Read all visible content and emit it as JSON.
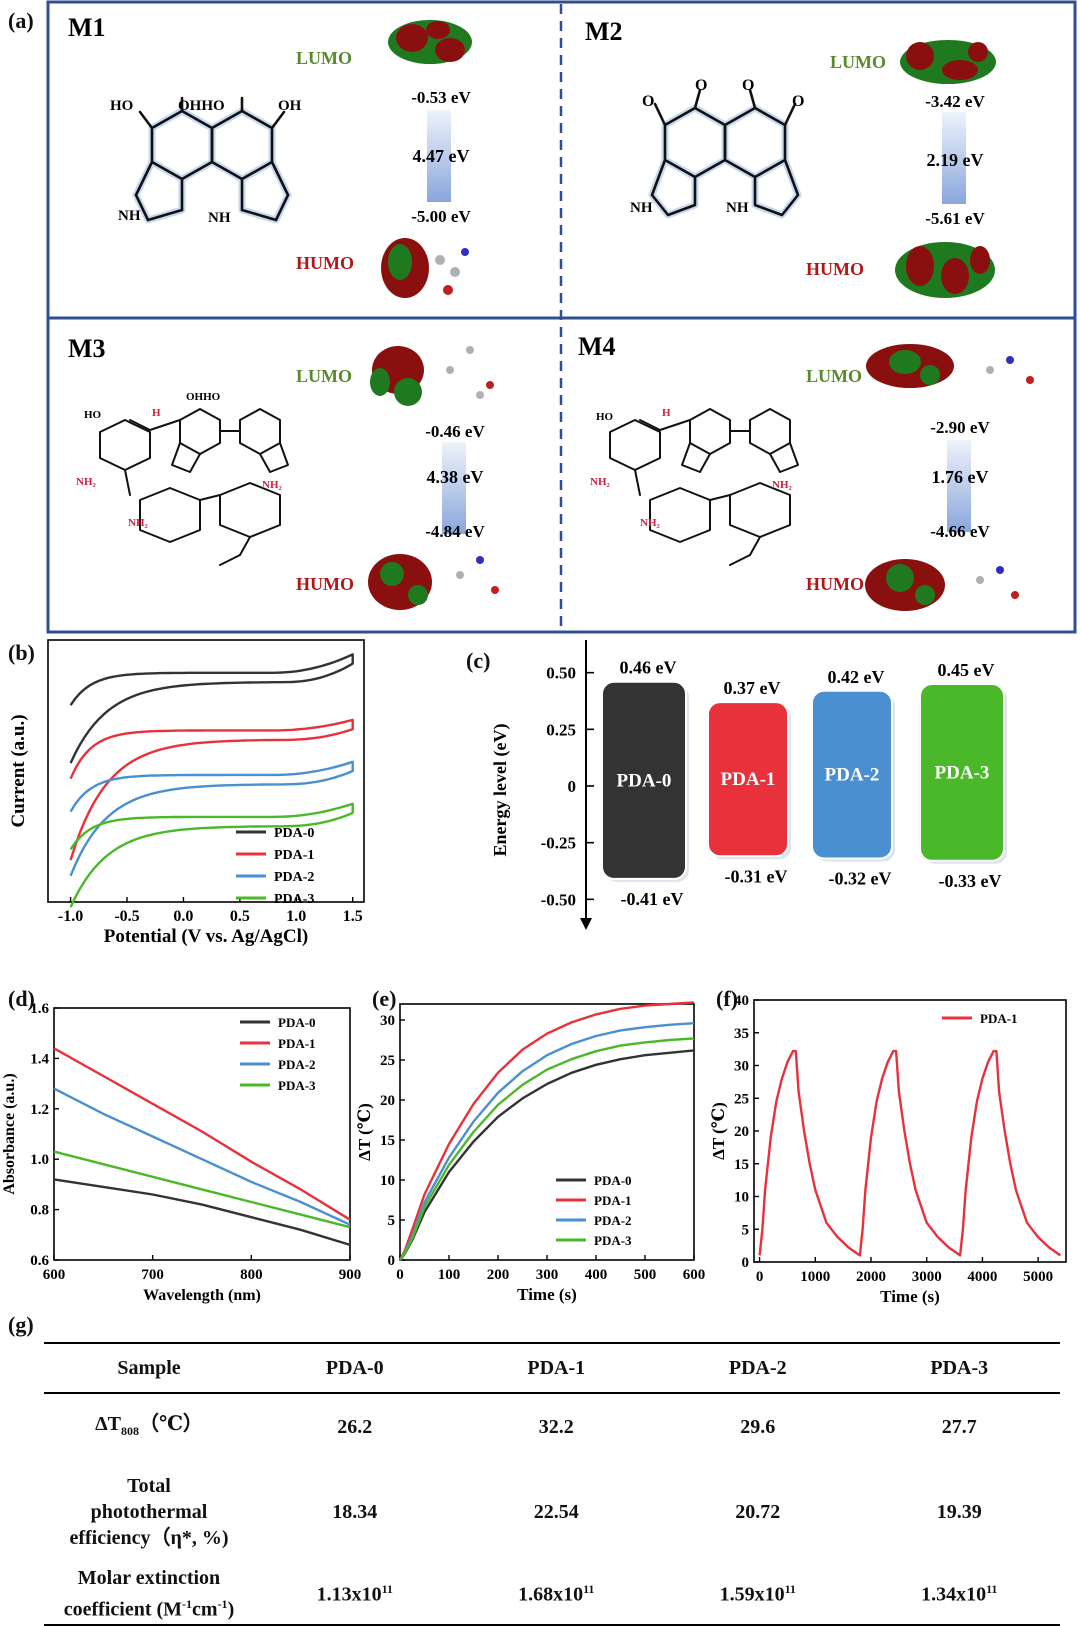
{
  "panel_labels": {
    "a": "(a)",
    "b": "(b)",
    "c": "(c)",
    "d": "(d)",
    "e": "(e)",
    "f": "(f)",
    "g": "(g)"
  },
  "colors": {
    "PDA-0": "#333333",
    "PDA-1": "#e8313b",
    "PDA-2": "#4a8fcf",
    "PDA-3": "#4bb82a",
    "frame": "#2f4f8f",
    "lumo": "#5a8a2a",
    "humo": "#b01818",
    "orbital_green": "#1f7a1f",
    "orbital_red": "#8a1010"
  },
  "molecules": [
    {
      "name": "M1",
      "lumo_label": "LUMO",
      "humo_label": "HUMO",
      "lumo": "-0.53 eV",
      "gap": "4.47 eV",
      "humo": "-5.00 eV"
    },
    {
      "name": "M2",
      "lumo_label": "LUMO",
      "humo_label": "HUMO",
      "lumo": "-3.42 eV",
      "gap": "2.19 eV",
      "humo": "-5.61 eV"
    },
    {
      "name": "M3",
      "lumo_label": "LUMO",
      "humo_label": "HUMO",
      "lumo": "-0.46 eV",
      "gap": "4.38 eV",
      "humo": "-4.84 eV"
    },
    {
      "name": "M4",
      "lumo_label": "LUMO",
      "humo_label": "HUMO",
      "lumo": "-2.90 eV",
      "gap": "1.76 eV",
      "humo": "-4.66 eV"
    }
  ],
  "structure_labels": {
    "OH": "OH",
    "HO": "HO",
    "OHHO": "OHHO",
    "OHHO2": "OHHO",
    "NH": "NH",
    "NH2": "NH₂",
    "H": "H",
    "O": "O"
  },
  "chart_data": [
    {
      "id": "b",
      "type": "line",
      "xlabel": "Potential (V vs. Ag/AgCl)",
      "ylabel": "Current (a.u.)",
      "xlim": [
        -1.2,
        1.6
      ],
      "xticks": [
        -1.0,
        -0.5,
        0.0,
        0.5,
        1.0,
        1.5
      ],
      "xtick_labels": [
        "-1.0",
        "-0.5",
        "0.0",
        "0.5",
        "1.0",
        "1.5"
      ],
      "legend": "bottom-right",
      "legend_labels": [
        "PDA-0",
        "PDA-1",
        "PDA-2",
        "PDA-3"
      ],
      "series": [
        {
          "name": "PDA-0",
          "upper_y": [
            0.8,
            0.83,
            0.85,
            0.86,
            0.86,
            0.86,
            0.87,
            0.89,
            0.93
          ],
          "lower_y": [
            0.8,
            0.83,
            0.85,
            0.86,
            0.86,
            0.86,
            0.87,
            0.89,
            0.93
          ],
          "baseline": 0.86,
          "start_y": 0.55,
          "end_y": 0.93
        },
        {
          "name": "PDA-1",
          "baseline": 0.64,
          "start_y": 0.18,
          "end_y": 0.68
        },
        {
          "name": "PDA-2",
          "baseline": 0.47,
          "start_y": 0.12,
          "end_y": 0.52
        },
        {
          "name": "PDA-3",
          "baseline": 0.31,
          "start_y": 0.0,
          "end_y": 0.36
        }
      ]
    },
    {
      "id": "c",
      "type": "bar",
      "ylabel": "Energy level (eV)",
      "ylim": [
        -0.6,
        0.6
      ],
      "yticks": [
        0.5,
        0.25,
        0,
        -0.25,
        -0.5
      ],
      "ytick_labels": [
        "0.50",
        "0.25",
        "0",
        "-0.25",
        "-0.50"
      ],
      "categories": [
        "PDA-0",
        "PDA-1",
        "PDA-2",
        "PDA-3"
      ],
      "top": [
        0.46,
        0.37,
        0.42,
        0.45
      ],
      "bottom": [
        -0.41,
        -0.31,
        -0.32,
        -0.33
      ],
      "top_labels": [
        "0.46 eV",
        "0.37 eV",
        "0.42 eV",
        "0.45 eV"
      ],
      "bottom_labels": [
        "-0.41 eV",
        "-0.31 eV",
        "-0.32 eV",
        "-0.33 eV"
      ]
    },
    {
      "id": "d",
      "type": "line",
      "xlabel": "Wavelength (nm)",
      "ylabel": "Absorbance (a.u.)",
      "xlim": [
        600,
        900
      ],
      "ylim": [
        0.6,
        1.6
      ],
      "xticks": [
        600,
        700,
        800,
        900
      ],
      "yticks": [
        0.6,
        0.8,
        1.0,
        1.2,
        1.4,
        1.6
      ],
      "ytick_labels": [
        "0.6",
        "0.8",
        "1.0",
        "1.2",
        "1.4",
        "1.6"
      ],
      "legend": "top-right",
      "x": [
        600,
        650,
        700,
        750,
        800,
        850,
        900
      ],
      "series": [
        {
          "name": "PDA-0",
          "values": [
            0.92,
            0.89,
            0.86,
            0.82,
            0.77,
            0.72,
            0.66
          ]
        },
        {
          "name": "PDA-1",
          "values": [
            1.44,
            1.33,
            1.22,
            1.11,
            0.99,
            0.88,
            0.76
          ]
        },
        {
          "name": "PDA-2",
          "values": [
            1.28,
            1.18,
            1.09,
            1.0,
            0.91,
            0.83,
            0.74
          ]
        },
        {
          "name": "PDA-3",
          "values": [
            1.03,
            0.98,
            0.93,
            0.88,
            0.83,
            0.78,
            0.73
          ]
        }
      ]
    },
    {
      "id": "e",
      "type": "line",
      "xlabel": "Time (s)",
      "ylabel": "ΔT (℃)",
      "xlim": [
        0,
        600
      ],
      "ylim": [
        0,
        32
      ],
      "xticks": [
        0,
        100,
        200,
        300,
        400,
        500,
        600
      ],
      "yticks": [
        0,
        5,
        10,
        15,
        20,
        25,
        30
      ],
      "legend": "bottom-right",
      "x": [
        0,
        10,
        25,
        50,
        100,
        150,
        200,
        250,
        300,
        350,
        400,
        450,
        500,
        550,
        600
      ],
      "series": [
        {
          "name": "PDA-0",
          "values": [
            0,
            0.8,
            2.5,
            6.0,
            11.0,
            14.8,
            17.9,
            20.2,
            22.0,
            23.4,
            24.4,
            25.1,
            25.6,
            25.9,
            26.2
          ]
        },
        {
          "name": "PDA-1",
          "values": [
            0,
            1.2,
            3.8,
            8.2,
            14.5,
            19.5,
            23.4,
            26.3,
            28.3,
            29.7,
            30.7,
            31.4,
            31.8,
            32.0,
            32.2
          ]
        },
        {
          "name": "PDA-2",
          "values": [
            0,
            1.0,
            3.0,
            7.2,
            12.8,
            17.3,
            20.9,
            23.6,
            25.6,
            27.0,
            28.0,
            28.7,
            29.1,
            29.4,
            29.6
          ]
        },
        {
          "name": "PDA-3",
          "values": [
            0,
            0.9,
            2.7,
            6.6,
            11.9,
            16.0,
            19.4,
            21.9,
            23.8,
            25.1,
            26.1,
            26.8,
            27.2,
            27.5,
            27.7
          ]
        }
      ]
    },
    {
      "id": "f",
      "type": "line",
      "xlabel": "Time (s)",
      "ylabel": "ΔT (℃)",
      "xlim": [
        -100,
        5500
      ],
      "ylim": [
        0,
        40
      ],
      "xticks": [
        0,
        1000,
        2000,
        3000,
        4000,
        5000
      ],
      "yticks": [
        0,
        5,
        10,
        15,
        20,
        25,
        30,
        35,
        40
      ],
      "legend": "top-right",
      "series": [
        {
          "name": "PDA-1",
          "x": [
            0,
            50,
            100,
            200,
            300,
            400,
            500,
            600,
            650,
            700,
            800,
            900,
            1000,
            1100,
            1200,
            1400,
            1600,
            1800,
            1850,
            1900,
            2000,
            2100,
            2200,
            2300,
            2400,
            2450,
            2500,
            2600,
            2700,
            2800,
            2900,
            3000,
            3200,
            3400,
            3600,
            3650,
            3700,
            3800,
            3900,
            4000,
            4100,
            4200,
            4250,
            4300,
            4400,
            4500,
            4600,
            4700,
            4800,
            5000,
            5200,
            5400
          ],
          "values": [
            1,
            5,
            11,
            19,
            24.5,
            28,
            30.5,
            32.2,
            32.2,
            26,
            20,
            15,
            11,
            8.5,
            6,
            3.8,
            2.2,
            1.0,
            5,
            11,
            19,
            24.5,
            28,
            30.5,
            32.2,
            32.2,
            26,
            20,
            15,
            11,
            8.5,
            6,
            3.8,
            2.2,
            1.0,
            5,
            11,
            19,
            24.5,
            28,
            30.5,
            32.2,
            32.2,
            26,
            20,
            15,
            11,
            8.5,
            6,
            3.8,
            2.2,
            1.0
          ]
        }
      ]
    }
  ],
  "table": {
    "header": [
      "Sample",
      "PDA-0",
      "PDA-1",
      "PDA-2",
      "PDA-3"
    ],
    "row1_label": "ΔT",
    "row1_sub": "808",
    "row1_unit": "（℃）",
    "row1": [
      "26.2",
      "32.2",
      "29.6",
      "27.7"
    ],
    "row2_label_1": "Total",
    "row2_label_2": "photothermal",
    "row2_label_3": "efficiency（η*, %)",
    "row2": [
      "18.34",
      "22.54",
      "20.72",
      "19.39"
    ],
    "row3_label_1": "Molar extinction",
    "row3_label_2a": "coefficient (M",
    "row3_label_2b": "cm",
    "row3_label_2c": ")",
    "row3_exp": "-1",
    "row3_base": [
      "1.13x10",
      "1.68x10",
      "1.59x10",
      "1.34x10"
    ],
    "row3_pow": "11"
  }
}
